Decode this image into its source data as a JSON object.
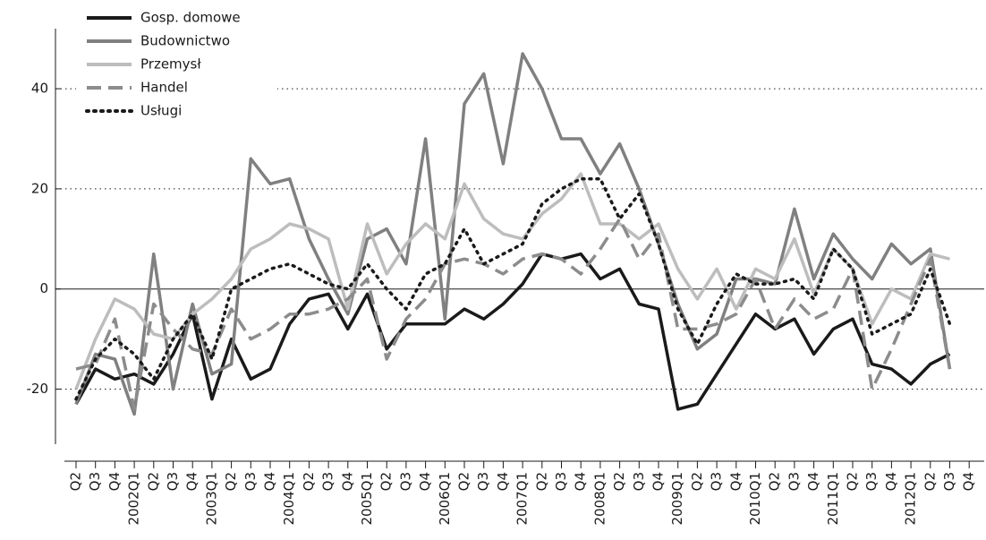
{
  "chart_data": {
    "type": "line",
    "categories": [
      "Q2",
      "Q3",
      "Q4",
      "2002Q1",
      "Q2",
      "Q3",
      "Q4",
      "2003Q1",
      "Q2",
      "Q3",
      "Q4",
      "2004Q1",
      "Q2",
      "Q3",
      "Q4",
      "2005Q1",
      "Q2",
      "Q3",
      "Q4",
      "2006Q1",
      "Q2",
      "Q3",
      "Q4",
      "2007Q1",
      "Q2",
      "Q3",
      "Q4",
      "2008Q1",
      "Q2",
      "Q3",
      "Q4",
      "2009Q1",
      "Q2",
      "Q3",
      "Q4",
      "2010Q1",
      "Q2",
      "Q3",
      "Q4",
      "2011Q1",
      "Q2",
      "Q3",
      "Q4",
      "2012Q1",
      "Q2",
      "Q3",
      "Q4"
    ],
    "series": [
      {
        "name": "Gosp. domowe",
        "color": "#1a1a1a",
        "dash": "solid",
        "values": [
          -23,
          -16,
          -18,
          -17,
          -19,
          -13,
          -5,
          -22,
          -10,
          -18,
          -16,
          -7,
          -2,
          -1,
          -8,
          -1,
          -12,
          -7,
          -7,
          -7,
          -4,
          -6,
          -3,
          1,
          7,
          6,
          7,
          2,
          4,
          -3,
          -4,
          -24,
          -23,
          -17,
          -11,
          -5,
          -8,
          -6,
          -13,
          -8,
          -6,
          -15,
          -16,
          -19,
          -15,
          -13,
          null
        ]
      },
      {
        "name": "Budownictwo",
        "color": "#808080",
        "dash": "solid",
        "values": [
          -23,
          -13,
          -14,
          -25,
          7,
          -20,
          -3,
          -17,
          -15,
          26,
          21,
          22,
          10,
          2,
          -5,
          10,
          12,
          5,
          30,
          -6,
          37,
          43,
          25,
          47,
          40,
          30,
          30,
          23,
          29,
          20,
          9,
          -3,
          -12,
          -9,
          2,
          2,
          1,
          16,
          2,
          11,
          6,
          2,
          9,
          5,
          8,
          -16,
          null
        ]
      },
      {
        "name": "Przemysł",
        "color": "#bdbdbd",
        "dash": "solid",
        "values": [
          -20,
          -10,
          -2,
          -4,
          -9,
          -10,
          -5,
          -2,
          2,
          8,
          10,
          13,
          12,
          10,
          -4,
          13,
          3,
          9,
          13,
          10,
          21,
          14,
          11,
          10,
          15,
          18,
          23,
          13,
          13,
          10,
          13,
          4,
          -2,
          4,
          -4,
          4,
          2,
          10,
          -1,
          8,
          4,
          -7,
          0,
          -2,
          7,
          6,
          null
        ]
      },
      {
        "name": "Handel",
        "color": "#8c8c8c",
        "dash": "dashed",
        "values": [
          -16,
          -15,
          -6,
          -24,
          -3,
          -8,
          -12,
          -13,
          -4,
          -10,
          -8,
          -5,
          -5,
          -4,
          -2,
          2,
          -14,
          -6,
          -2,
          5,
          6,
          5,
          3,
          6,
          7,
          6,
          3,
          8,
          14,
          6,
          11,
          -8,
          -8,
          -7,
          -5,
          2,
          -8,
          -2,
          -6,
          -4,
          4,
          -20,
          -12,
          -3,
          6,
          -16,
          null
        ]
      },
      {
        "name": "Usługi",
        "color": "#1a1a1a",
        "dash": "dotted",
        "values": [
          -22,
          -14,
          -10,
          -13,
          -18,
          -10,
          -5,
          -14,
          0,
          2,
          4,
          5,
          3,
          1,
          0,
          5,
          0,
          -4,
          3,
          5,
          12,
          5,
          7,
          9,
          17,
          20,
          22,
          22,
          14,
          19,
          9,
          -4,
          -11,
          -3,
          3,
          1,
          1,
          2,
          -2,
          8,
          4,
          -9,
          -7,
          -5,
          4,
          -7,
          null
        ]
      }
    ],
    "ylim": [
      -31,
      52
    ],
    "yticks": [
      -20,
      0,
      20,
      40
    ],
    "grid": true,
    "legend": "top-left"
  }
}
